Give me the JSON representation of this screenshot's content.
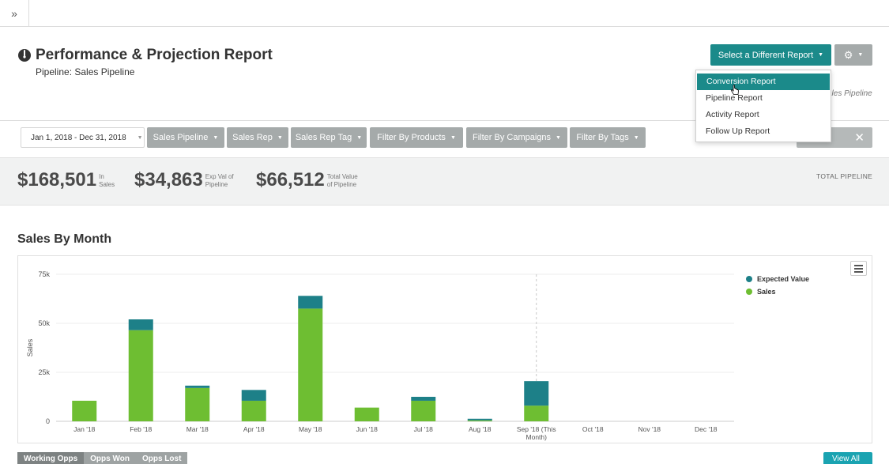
{
  "topbar": {
    "expand_icon": "double-chevron-right-icon",
    "expand_glyph": "»"
  },
  "header": {
    "title": "Performance & Projection Report",
    "subtitle": "Pipeline: Sales Pipeline",
    "select_report_label": "Select a Different Report",
    "pipeline_label_partial": "ales Pipeline"
  },
  "dropdown": {
    "items": [
      {
        "label": "Conversion Report",
        "active": true
      },
      {
        "label": "Pipeline Report",
        "active": false
      },
      {
        "label": "Activity Report",
        "active": false
      },
      {
        "label": "Follow Up Report",
        "active": false
      }
    ]
  },
  "filters": {
    "date_range": "Jan 1, 2018 - Dec 31, 2018",
    "buttons": [
      "Sales Pipeline",
      "Sales Rep",
      "Sales Rep Tag",
      "Filter By Products",
      "Filter By Campaigns",
      "Filter By Tags"
    ],
    "apply_label": "ly"
  },
  "summary": {
    "stats": [
      {
        "value": "$168,501",
        "label_line1": "In",
        "label_line2": "Sales"
      },
      {
        "value": "$34,863",
        "label_line1": "Exp Val of",
        "label_line2": "Pipeline"
      },
      {
        "value": "$66,512",
        "label_line1": "Total Value",
        "label_line2": "of Pipeline"
      }
    ],
    "total_pipeline_label": "TOTAL PIPELINE"
  },
  "section": {
    "title": "Sales By Month"
  },
  "chart_data": {
    "type": "bar",
    "stacked": true,
    "ylabel": "Sales",
    "ylim": [
      0,
      75000
    ],
    "yticks": [
      0,
      25000,
      50000,
      75000
    ],
    "ytick_labels": [
      "0",
      "25k",
      "50k",
      "75k"
    ],
    "categories": [
      "Jan '18",
      "Feb '18",
      "Mar '18",
      "Apr '18",
      "May '18",
      "Jun '18",
      "Jul '18",
      "Aug '18",
      "Sep '18 (This Month)",
      "Oct '18",
      "Nov '18",
      "Dec '18"
    ],
    "category_lines": [
      [
        "Jan '18"
      ],
      [
        "Feb '18"
      ],
      [
        "Mar '18"
      ],
      [
        "Apr '18"
      ],
      [
        "May '18"
      ],
      [
        "Jun '18"
      ],
      [
        "Jul '18"
      ],
      [
        "Aug '18"
      ],
      [
        "Sep '18 (This",
        "Month)"
      ],
      [
        "Oct '18"
      ],
      [
        "Nov '18"
      ],
      [
        "Dec '18"
      ]
    ],
    "series": [
      {
        "name": "Sales",
        "color": "#6ebe32",
        "values": [
          10500,
          46500,
          17000,
          10500,
          57500,
          7000,
          10500,
          500,
          8000,
          0,
          0,
          0
        ]
      },
      {
        "name": "Expected Value",
        "color": "#1d8088",
        "values": [
          0,
          5500,
          1200,
          5500,
          6500,
          0,
          2000,
          800,
          12500,
          0,
          0,
          0
        ]
      }
    ],
    "legend": [
      "Expected Value",
      "Sales"
    ],
    "legend_position": "top-right",
    "current_month_marker": "Sep '18 (This Month)",
    "grid": true
  },
  "bottom": {
    "tabs": [
      {
        "label": "Working Opps",
        "active": true
      },
      {
        "label": "Opps Won",
        "active": false
      },
      {
        "label": "Opps Lost",
        "active": false
      }
    ],
    "view_all_label": "View All"
  }
}
